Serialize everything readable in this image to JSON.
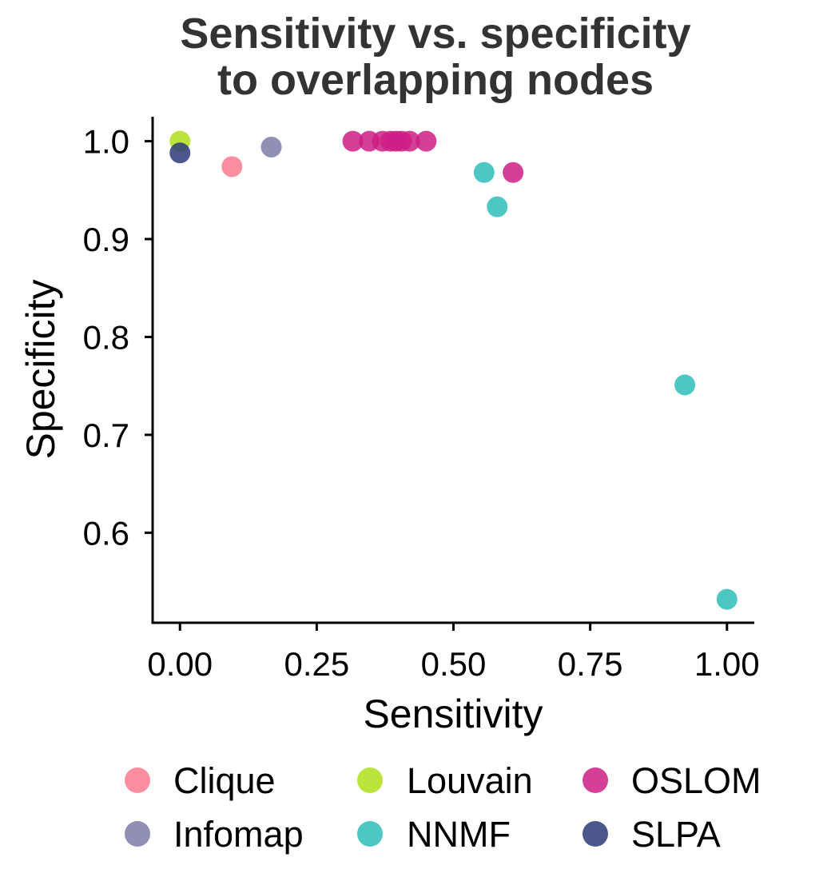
{
  "chart_data": {
    "type": "scatter",
    "title_lines": [
      "Sensitivity vs. specificity",
      "to overlapping nodes"
    ],
    "xlabel": "Sensitivity",
    "ylabel": "Specificity",
    "xlim": [
      -0.05,
      1.05
    ],
    "ylim": [
      0.508,
      1.025
    ],
    "x_ticks": [
      0.0,
      0.25,
      0.5,
      0.75,
      1.0
    ],
    "x_tick_labels": [
      "0.00",
      "0.25",
      "0.50",
      "0.75",
      "1.00"
    ],
    "y_ticks": [
      0.6,
      0.7,
      0.8,
      0.9,
      1.0
    ],
    "y_tick_labels": [
      "0.6",
      "0.7",
      "0.8",
      "0.9",
      "1.0"
    ],
    "grid": false,
    "legend_position": "bottom",
    "series": [
      {
        "name": "Clique",
        "color": "#F97A8E",
        "points": [
          [
            0.095,
            0.974
          ]
        ]
      },
      {
        "name": "Infomap",
        "color": "#7C7BA8",
        "points": [
          [
            0.167,
            0.994
          ]
        ]
      },
      {
        "name": "Louvain",
        "color": "#AEDE1A",
        "points": [
          [
            0.0,
            1.0
          ]
        ]
      },
      {
        "name": "NNMF",
        "color": "#2EBDB8",
        "points": [
          [
            0.556,
            0.968
          ],
          [
            0.58,
            0.933
          ],
          [
            0.923,
            0.751
          ],
          [
            1.0,
            0.532
          ]
        ]
      },
      {
        "name": "OSLOM",
        "color": "#CC1D85",
        "points": [
          [
            0.316,
            1.0
          ],
          [
            0.346,
            1.0
          ],
          [
            0.37,
            1.0
          ],
          [
            0.385,
            1.0
          ],
          [
            0.395,
            1.0
          ],
          [
            0.405,
            1.0
          ],
          [
            0.42,
            1.0
          ],
          [
            0.45,
            1.0
          ],
          [
            0.609,
            0.968
          ]
        ]
      },
      {
        "name": "SLPA",
        "color": "#2B3A78",
        "points": [
          [
            0.0,
            0.988
          ]
        ]
      }
    ]
  }
}
